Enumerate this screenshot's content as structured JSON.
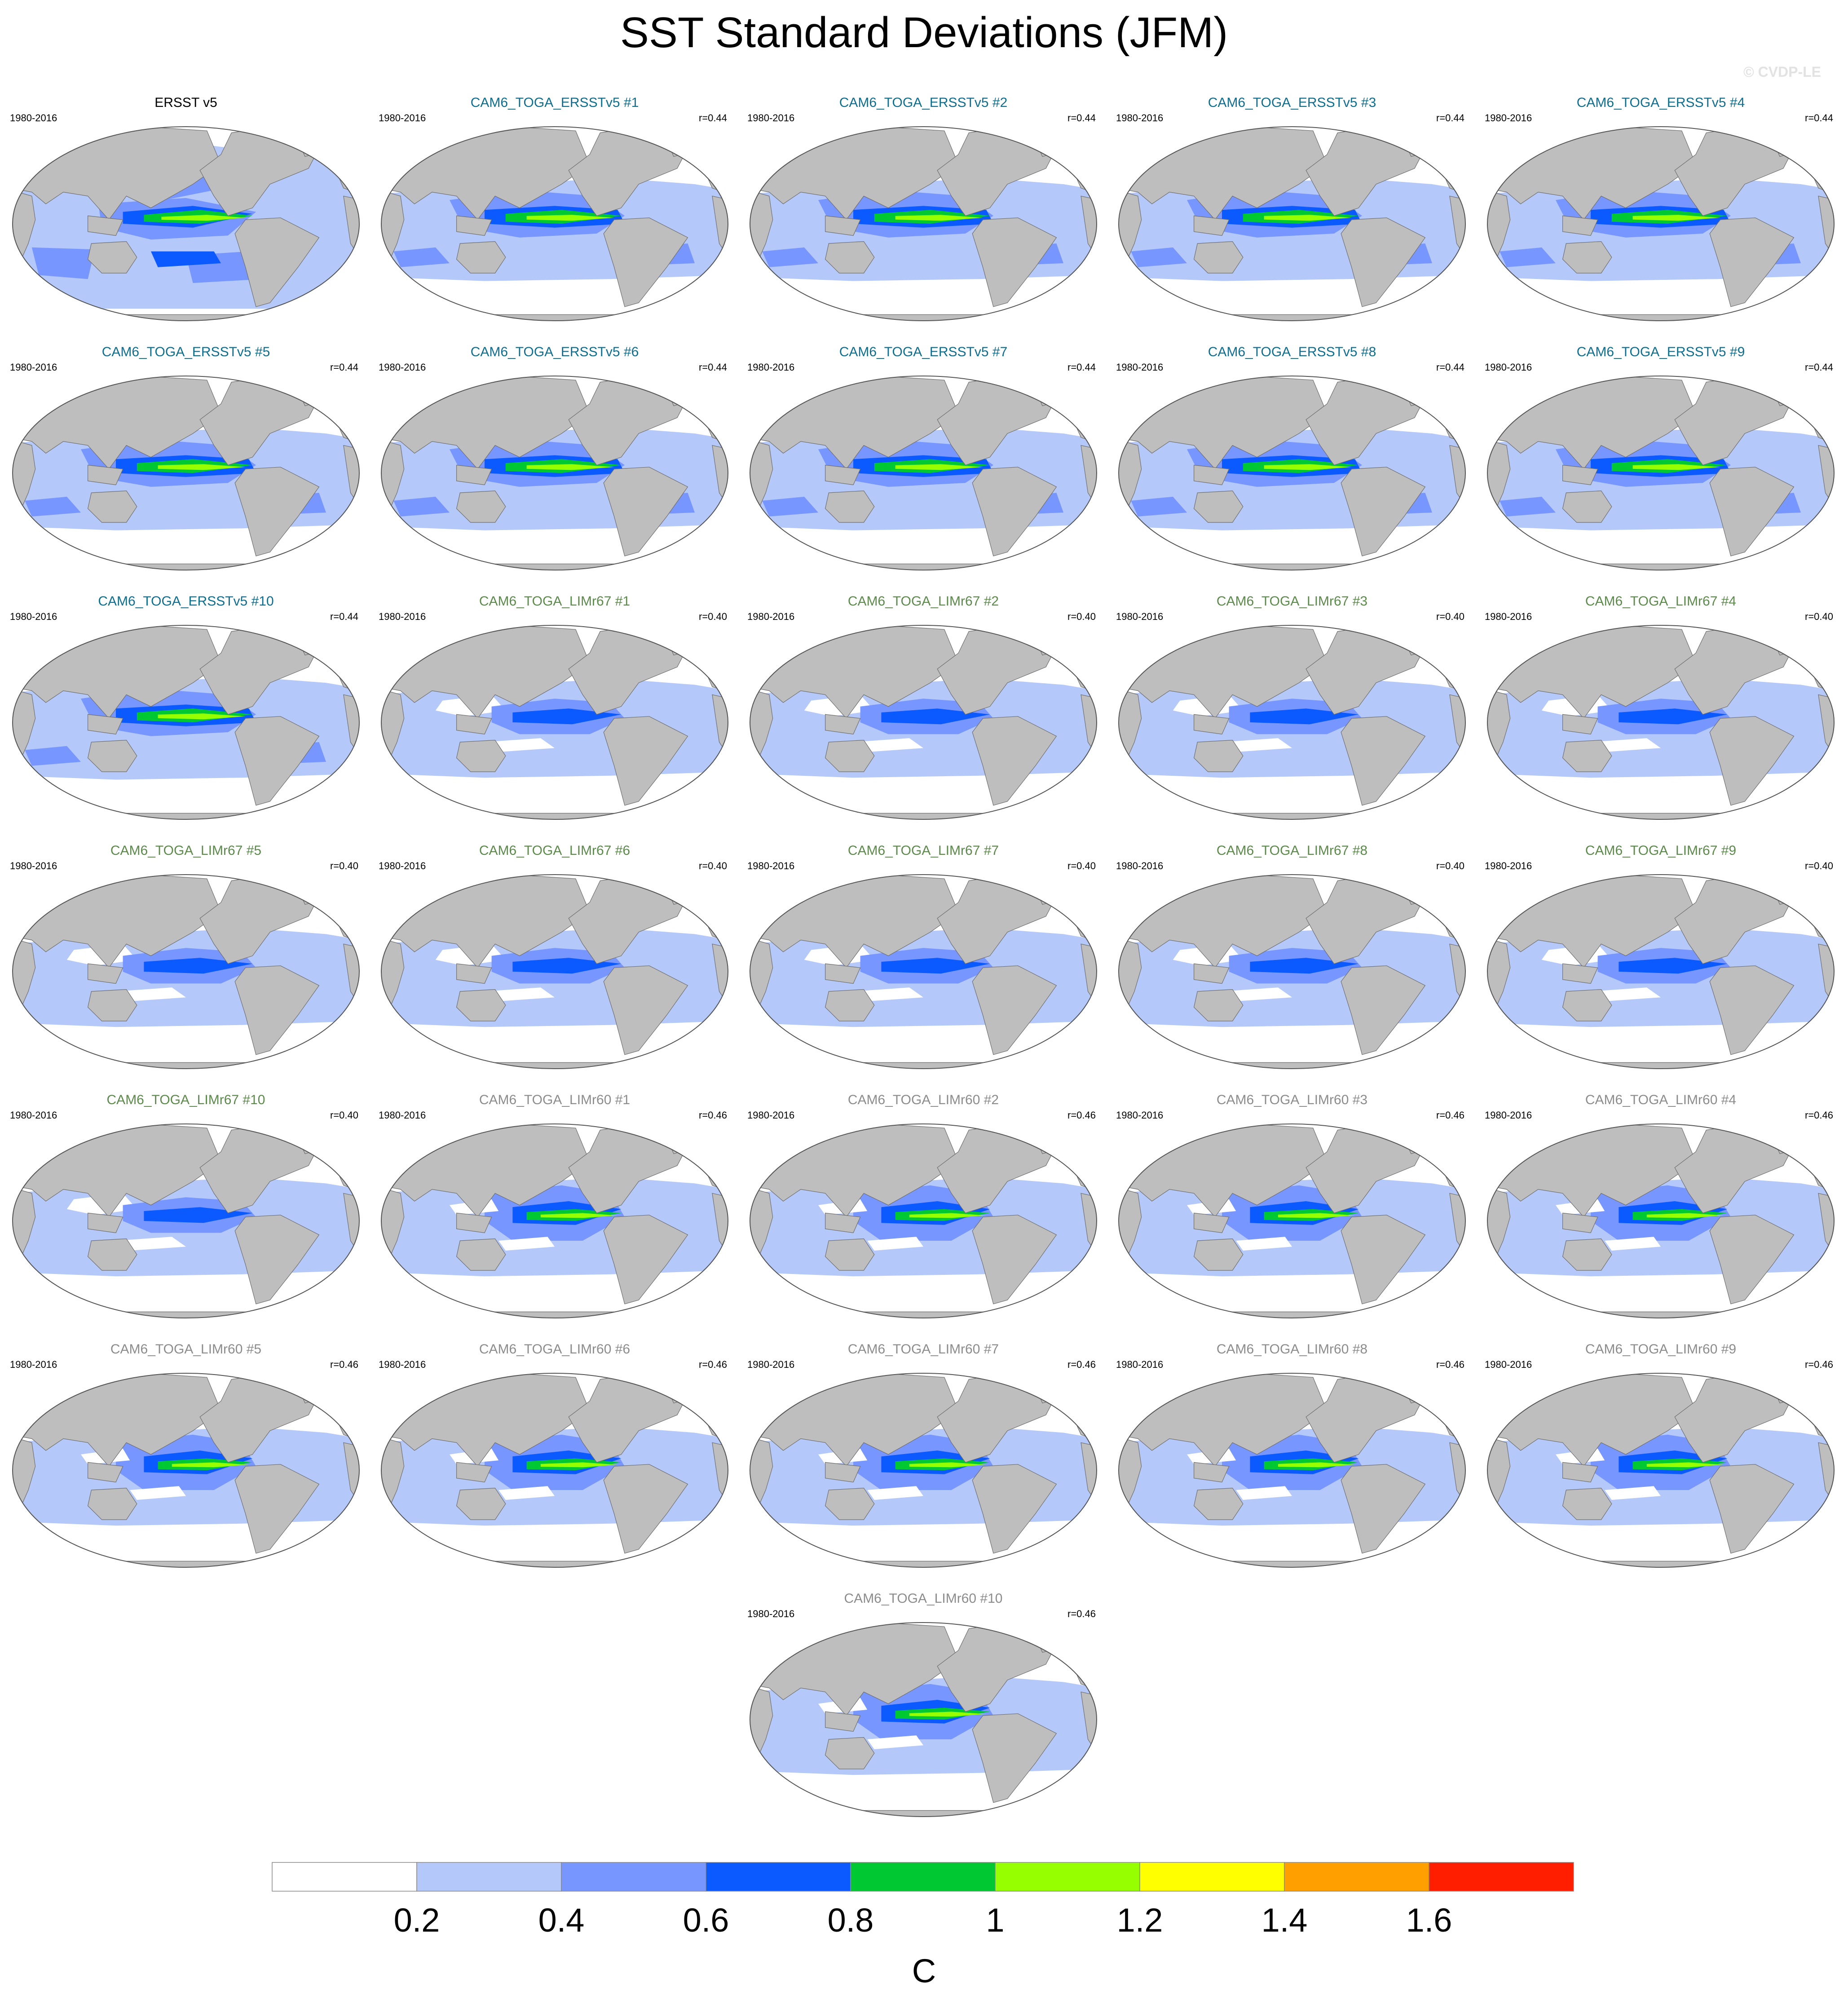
{
  "figure": {
    "title": "SST Standard Deviations (JFM)",
    "watermark": "© CVDP-LE",
    "colors": {
      "land": "#bebebe",
      "title_obs": "#000000",
      "title_ersst": "#0d6e8f",
      "title_limr67": "#5b8a4a",
      "title_limr60": "#8c8c8c"
    }
  },
  "chart_data": {
    "type": "contour-map-panels",
    "projection": "robinson-global",
    "season": "JFM",
    "panels": [
      {
        "title": "ERSST v5",
        "years": "1980-2016",
        "r": "",
        "group": "obs",
        "pattern": "obs"
      },
      {
        "title": "CAM6_TOGA_ERSSTv5 #1",
        "years": "1980-2016",
        "r": "r=0.44",
        "group": "ersst",
        "pattern": "ersst"
      },
      {
        "title": "CAM6_TOGA_ERSSTv5 #2",
        "years": "1980-2016",
        "r": "r=0.44",
        "group": "ersst",
        "pattern": "ersst"
      },
      {
        "title": "CAM6_TOGA_ERSSTv5 #3",
        "years": "1980-2016",
        "r": "r=0.44",
        "group": "ersst",
        "pattern": "ersst"
      },
      {
        "title": "CAM6_TOGA_ERSSTv5 #4",
        "years": "1980-2016",
        "r": "r=0.44",
        "group": "ersst",
        "pattern": "ersst"
      },
      {
        "title": "CAM6_TOGA_ERSSTv5 #5",
        "years": "1980-2016",
        "r": "r=0.44",
        "group": "ersst",
        "pattern": "ersst"
      },
      {
        "title": "CAM6_TOGA_ERSSTv5 #6",
        "years": "1980-2016",
        "r": "r=0.44",
        "group": "ersst",
        "pattern": "ersst"
      },
      {
        "title": "CAM6_TOGA_ERSSTv5 #7",
        "years": "1980-2016",
        "r": "r=0.44",
        "group": "ersst",
        "pattern": "ersst"
      },
      {
        "title": "CAM6_TOGA_ERSSTv5 #8",
        "years": "1980-2016",
        "r": "r=0.44",
        "group": "ersst",
        "pattern": "ersst"
      },
      {
        "title": "CAM6_TOGA_ERSSTv5 #9",
        "years": "1980-2016",
        "r": "r=0.44",
        "group": "ersst",
        "pattern": "ersst"
      },
      {
        "title": "CAM6_TOGA_ERSSTv5 #10",
        "years": "1980-2016",
        "r": "r=0.44",
        "group": "ersst",
        "pattern": "ersst"
      },
      {
        "title": "CAM6_TOGA_LIMr67 #1",
        "years": "1980-2016",
        "r": "r=0.40",
        "group": "limr67",
        "pattern": "limr67"
      },
      {
        "title": "CAM6_TOGA_LIMr67 #2",
        "years": "1980-2016",
        "r": "r=0.40",
        "group": "limr67",
        "pattern": "limr67"
      },
      {
        "title": "CAM6_TOGA_LIMr67 #3",
        "years": "1980-2016",
        "r": "r=0.40",
        "group": "limr67",
        "pattern": "limr67"
      },
      {
        "title": "CAM6_TOGA_LIMr67 #4",
        "years": "1980-2016",
        "r": "r=0.40",
        "group": "limr67",
        "pattern": "limr67"
      },
      {
        "title": "CAM6_TOGA_LIMr67 #5",
        "years": "1980-2016",
        "r": "r=0.40",
        "group": "limr67",
        "pattern": "limr67"
      },
      {
        "title": "CAM6_TOGA_LIMr67 #6",
        "years": "1980-2016",
        "r": "r=0.40",
        "group": "limr67",
        "pattern": "limr67"
      },
      {
        "title": "CAM6_TOGA_LIMr67 #7",
        "years": "1980-2016",
        "r": "r=0.40",
        "group": "limr67",
        "pattern": "limr67"
      },
      {
        "title": "CAM6_TOGA_LIMr67 #8",
        "years": "1980-2016",
        "r": "r=0.40",
        "group": "limr67",
        "pattern": "limr67"
      },
      {
        "title": "CAM6_TOGA_LIMr67 #9",
        "years": "1980-2016",
        "r": "r=0.40",
        "group": "limr67",
        "pattern": "limr67"
      },
      {
        "title": "CAM6_TOGA_LIMr67 #10",
        "years": "1980-2016",
        "r": "r=0.40",
        "group": "limr67",
        "pattern": "limr67"
      },
      {
        "title": "CAM6_TOGA_LIMr60 #1",
        "years": "1980-2016",
        "r": "r=0.46",
        "group": "limr60",
        "pattern": "limr60"
      },
      {
        "title": "CAM6_TOGA_LIMr60 #2",
        "years": "1980-2016",
        "r": "r=0.46",
        "group": "limr60",
        "pattern": "limr60"
      },
      {
        "title": "CAM6_TOGA_LIMr60 #3",
        "years": "1980-2016",
        "r": "r=0.46",
        "group": "limr60",
        "pattern": "limr60"
      },
      {
        "title": "CAM6_TOGA_LIMr60 #4",
        "years": "1980-2016",
        "r": "r=0.46",
        "group": "limr60",
        "pattern": "limr60"
      },
      {
        "title": "CAM6_TOGA_LIMr60 #5",
        "years": "1980-2016",
        "r": "r=0.46",
        "group": "limr60",
        "pattern": "limr60"
      },
      {
        "title": "CAM6_TOGA_LIMr60 #6",
        "years": "1980-2016",
        "r": "r=0.46",
        "group": "limr60",
        "pattern": "limr60"
      },
      {
        "title": "CAM6_TOGA_LIMr60 #7",
        "years": "1980-2016",
        "r": "r=0.46",
        "group": "limr60",
        "pattern": "limr60"
      },
      {
        "title": "CAM6_TOGA_LIMr60 #8",
        "years": "1980-2016",
        "r": "r=0.46",
        "group": "limr60",
        "pattern": "limr60"
      },
      {
        "title": "CAM6_TOGA_LIMr60 #9",
        "years": "1980-2016",
        "r": "r=0.46",
        "group": "limr60",
        "pattern": "limr60"
      },
      {
        "title": "CAM6_TOGA_LIMr60 #10",
        "years": "1980-2016",
        "r": "r=0.46",
        "group": "limr60",
        "pattern": "limr60"
      }
    ],
    "colorbar": {
      "unit": "C",
      "levels": [
        0.2,
        0.4,
        0.6,
        0.8,
        1,
        1.2,
        1.4,
        1.6
      ],
      "tick_labels": [
        "0.2",
        "0.4",
        "0.6",
        "0.8",
        "1",
        "1.2",
        "1.4",
        "1.6"
      ],
      "colors": [
        "#ffffff",
        "#b4c8fa",
        "#7896ff",
        "#0a5aff",
        "#00c832",
        "#96ff00",
        "#ffff00",
        "#ffa000",
        "#ff1e00"
      ]
    }
  }
}
